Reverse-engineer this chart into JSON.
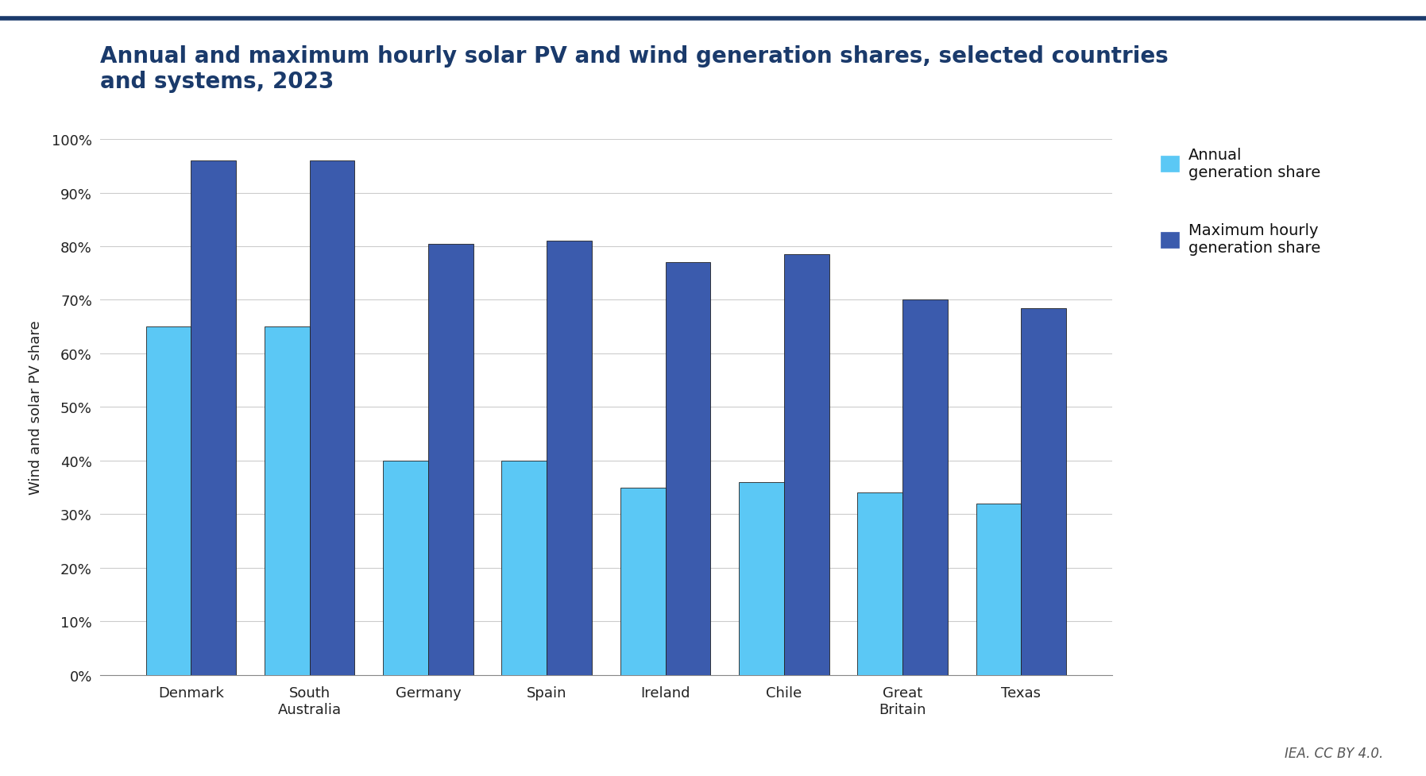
{
  "title": "Annual and maximum hourly solar PV and wind generation shares, selected countries\nand systems, 2023",
  "ylabel": "Wind and solar PV share",
  "categories": [
    "Denmark",
    "South\nAustralia",
    "Germany",
    "Spain",
    "Ireland",
    "Chile",
    "Great\nBritain",
    "Texas"
  ],
  "annual_values": [
    0.65,
    0.65,
    0.4,
    0.4,
    0.35,
    0.36,
    0.34,
    0.32
  ],
  "max_hourly_values": [
    0.96,
    0.96,
    0.805,
    0.81,
    0.77,
    0.785,
    0.7,
    0.685
  ],
  "annual_color": "#5BC8F5",
  "max_hourly_color": "#3B5BAD",
  "background_color": "#ffffff",
  "grid_color": "#cccccc",
  "title_color": "#1a3a6b",
  "legend_annual_label": "Annual\ngeneration share",
  "legend_max_label": "Maximum hourly\ngeneration share",
  "credit_text": "IEA. CC BY 4.0.",
  "ylim": [
    0,
    1.0
  ],
  "yticks": [
    0.0,
    0.1,
    0.2,
    0.3,
    0.4,
    0.5,
    0.6,
    0.7,
    0.8,
    0.9,
    1.0
  ],
  "ytick_labels": [
    "0%",
    "10%",
    "20%",
    "30%",
    "40%",
    "50%",
    "60%",
    "70%",
    "80%",
    "90%",
    "100%"
  ],
  "bar_width": 0.38,
  "title_fontsize": 20,
  "label_fontsize": 13,
  "tick_fontsize": 13,
  "legend_fontsize": 14,
  "top_line_color": "#1a3a6b"
}
